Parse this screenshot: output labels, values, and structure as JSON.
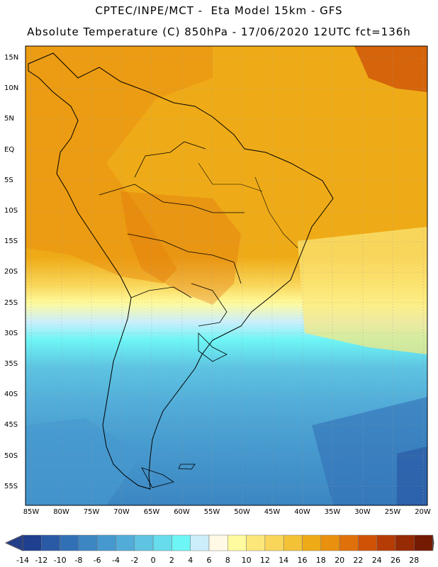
{
  "header": {
    "line1": "CPTEC/INPE/MCT -  Eta Model 15km - GFS",
    "line2": "Absolute Temperature (C) 850hPa - 17/06/2020 12UTC fct=136h"
  },
  "axes": {
    "lat_labels": [
      "15N",
      "10N",
      "5N",
      "EQ",
      "5S",
      "10S",
      "15S",
      "20S",
      "25S",
      "30S",
      "35S",
      "40S",
      "45S",
      "50S",
      "55S"
    ],
    "lon_labels": [
      "85W",
      "80W",
      "75W",
      "70W",
      "65W",
      "60W",
      "55W",
      "50W",
      "45W",
      "40W",
      "35W",
      "30W",
      "25W",
      "20W"
    ]
  },
  "colorbar": {
    "labels": [
      "-14",
      "-12",
      "-10",
      "-8",
      "-6",
      "-4",
      "-2",
      "0",
      "2",
      "4",
      "6",
      "8",
      "10",
      "12",
      "14",
      "16",
      "18",
      "20",
      "22",
      "24",
      "26",
      "28"
    ],
    "colors": [
      "#1f3f8f",
      "#2a5aa5",
      "#3270b5",
      "#3c86c2",
      "#4699ce",
      "#52acd8",
      "#5ec4e2",
      "#66dcec",
      "#6ef5f5",
      "#cceefb",
      "#fff9e6",
      "#fffb9e",
      "#fce87a",
      "#f9d65a",
      "#f4c237",
      "#efab17",
      "#e9900e",
      "#e0700a",
      "#cf5207",
      "#b63c05",
      "#962a03",
      "#751a02"
    ]
  }
}
